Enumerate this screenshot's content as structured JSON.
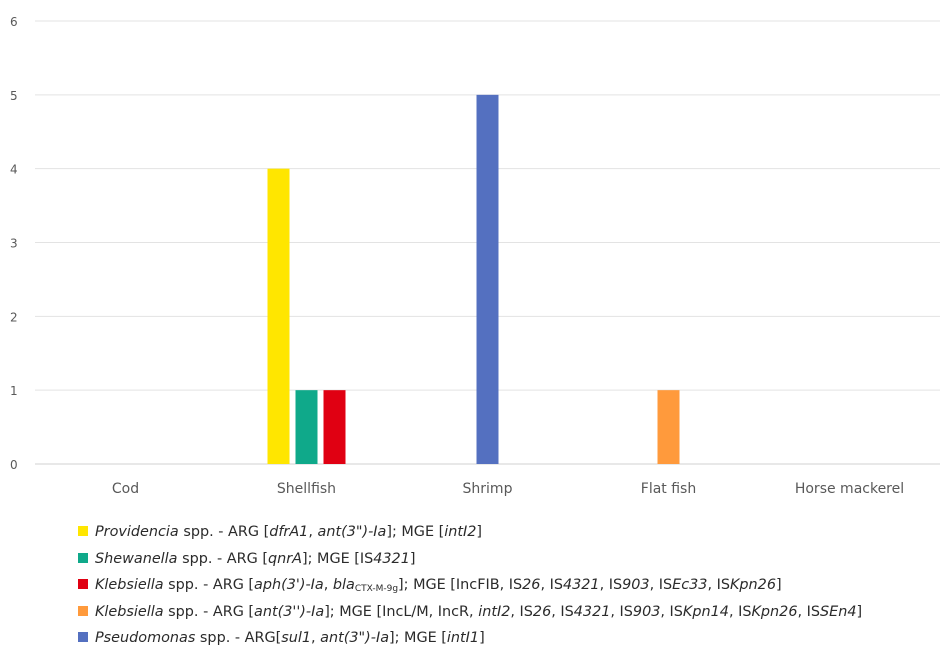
{
  "chart_data": {
    "type": "bar",
    "categories": [
      "Cod",
      "Shellfish",
      "Shrimp",
      "Flat fish",
      "Horse mackerel"
    ],
    "ylim": [
      0,
      6
    ],
    "yticks": [
      0,
      1,
      2,
      3,
      4,
      5,
      6
    ],
    "grid": true,
    "legend_position": "bottom",
    "series": [
      {
        "name": "Providencia spp. - ARG [dfrA1, ant(3\")-Ia]; MGE [intI2]",
        "color": "#FFE600",
        "values": [
          0,
          4,
          0,
          0,
          0
        ]
      },
      {
        "name": "Shewanella spp. - ARG [qnrA]; MGE [IS4321]",
        "color": "#0FA98A",
        "values": [
          0,
          1,
          0,
          0,
          0
        ]
      },
      {
        "name": "Klebsiella spp. - ARG [aph(3')-Ia, blaCTX-M-9g]; MGE [IncFIB, IS26, IS4321, IS903, ISEc33, ISKpn26]",
        "color": "#E00012",
        "values": [
          0,
          1,
          0,
          0,
          0
        ]
      },
      {
        "name": "Klebsiella spp. - ARG [ant(3'')-Ia]; MGE [IncL/M, IncR, intI2, IS26, IS4321, IS903, ISKpn14, ISKpn26, ISSEn4]",
        "color": "#FF9A3C",
        "values": [
          0,
          0,
          0,
          1,
          0
        ]
      },
      {
        "name": "Pseudomonas spp. - ARG[sul1, ant(3\")-Ia]; MGE [intI1]",
        "color": "#5470C0",
        "values": [
          0,
          0,
          5,
          0,
          0
        ]
      }
    ]
  },
  "legend": [
    {
      "genus": "Providencia",
      "tail": " spp. - ARG [dfrA1, ant(3\")-Ia]; MGE [intI2]"
    },
    {
      "genus": "Shewanella",
      "tail": " spp. - ARG [qnrA]; MGE [IS4321]"
    },
    {
      "genus": "Klebsiella",
      "tail": " spp. - ARG [aph(3')-Ia, blaCTX-M-9g]; MGE [IncFIB, IS26, IS4321, IS903, ISEc33, ISKpn26]"
    },
    {
      "genus": "Klebsiella",
      "tail": " spp. - ARG [ant(3'')-Ia]; MGE [IncL/M, IncR, intI2, IS26, IS4321, IS903, ISKpn14, ISKpn26, ISSEn4]"
    },
    {
      "genus": "Pseudomonas",
      "tail": " spp. - ARG[sul1, ant(3\")-Ia]; MGE [intI1]"
    }
  ]
}
